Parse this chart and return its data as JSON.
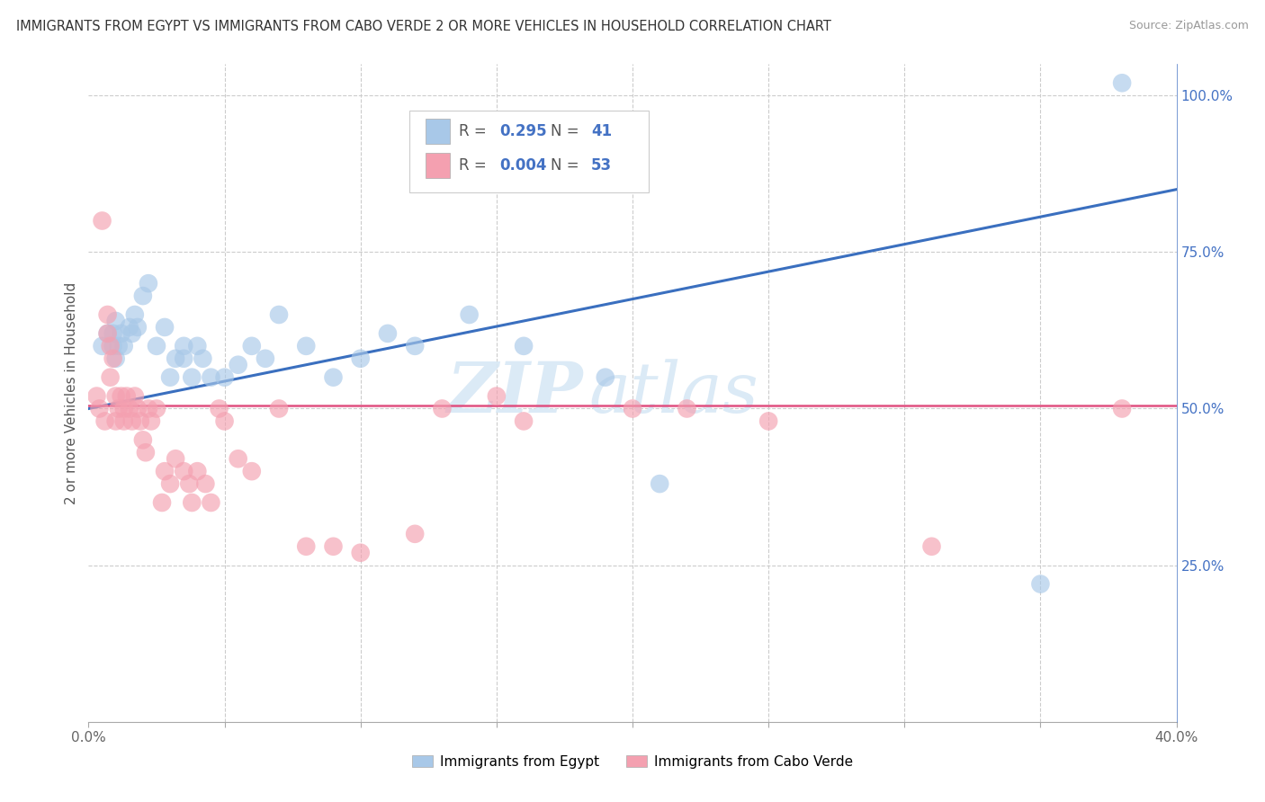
{
  "title": "IMMIGRANTS FROM EGYPT VS IMMIGRANTS FROM CABO VERDE 2 OR MORE VEHICLES IN HOUSEHOLD CORRELATION CHART",
  "source": "Source: ZipAtlas.com",
  "ylabel": "2 or more Vehicles in Household",
  "xlim": [
    0.0,
    0.4
  ],
  "ylim": [
    0.0,
    1.05
  ],
  "egypt_R": 0.295,
  "egypt_N": 41,
  "cabo_R": 0.004,
  "cabo_N": 53,
  "egypt_color": "#a8c8e8",
  "cabo_color": "#f4a0b0",
  "egypt_line_color": "#3a6fbf",
  "cabo_line_color": "#e05080",
  "egypt_scatter_x": [
    0.005,
    0.007,
    0.009,
    0.009,
    0.01,
    0.01,
    0.011,
    0.012,
    0.013,
    0.015,
    0.016,
    0.017,
    0.018,
    0.02,
    0.022,
    0.025,
    0.028,
    0.03,
    0.032,
    0.035,
    0.035,
    0.038,
    0.04,
    0.042,
    0.045,
    0.05,
    0.055,
    0.06,
    0.065,
    0.07,
    0.08,
    0.09,
    0.1,
    0.11,
    0.12,
    0.14,
    0.16,
    0.19,
    0.21,
    0.35,
    0.38
  ],
  "egypt_scatter_y": [
    0.6,
    0.62,
    0.6,
    0.62,
    0.64,
    0.58,
    0.6,
    0.62,
    0.6,
    0.63,
    0.62,
    0.65,
    0.63,
    0.68,
    0.7,
    0.6,
    0.63,
    0.55,
    0.58,
    0.6,
    0.58,
    0.55,
    0.6,
    0.58,
    0.55,
    0.55,
    0.57,
    0.6,
    0.58,
    0.65,
    0.6,
    0.55,
    0.58,
    0.62,
    0.6,
    0.65,
    0.6,
    0.55,
    0.38,
    0.22,
    1.02
  ],
  "cabo_scatter_x": [
    0.003,
    0.004,
    0.005,
    0.006,
    0.007,
    0.007,
    0.008,
    0.008,
    0.009,
    0.01,
    0.01,
    0.011,
    0.012,
    0.013,
    0.013,
    0.014,
    0.015,
    0.016,
    0.017,
    0.018,
    0.019,
    0.02,
    0.021,
    0.022,
    0.023,
    0.025,
    0.027,
    0.028,
    0.03,
    0.032,
    0.035,
    0.037,
    0.038,
    0.04,
    0.043,
    0.045,
    0.048,
    0.05,
    0.055,
    0.06,
    0.07,
    0.08,
    0.09,
    0.1,
    0.12,
    0.13,
    0.15,
    0.16,
    0.2,
    0.22,
    0.25,
    0.31,
    0.38
  ],
  "cabo_scatter_y": [
    0.52,
    0.5,
    0.8,
    0.48,
    0.62,
    0.65,
    0.6,
    0.55,
    0.58,
    0.52,
    0.48,
    0.5,
    0.52,
    0.5,
    0.48,
    0.52,
    0.5,
    0.48,
    0.52,
    0.5,
    0.48,
    0.45,
    0.43,
    0.5,
    0.48,
    0.5,
    0.35,
    0.4,
    0.38,
    0.42,
    0.4,
    0.38,
    0.35,
    0.4,
    0.38,
    0.35,
    0.5,
    0.48,
    0.42,
    0.4,
    0.5,
    0.28,
    0.28,
    0.27,
    0.3,
    0.5,
    0.52,
    0.48,
    0.5,
    0.5,
    0.48,
    0.28,
    0.5
  ],
  "egypt_line_x": [
    0.0,
    0.4
  ],
  "egypt_line_y": [
    0.5,
    0.85
  ],
  "cabo_line_x": [
    0.0,
    0.4
  ],
  "cabo_line_y": [
    0.505,
    0.505
  ],
  "watermark_zip": "ZIP",
  "watermark_atlas": "atlas",
  "legend_egypt_label": "Immigrants from Egypt",
  "legend_cabo_label": "Immigrants from Cabo Verde"
}
